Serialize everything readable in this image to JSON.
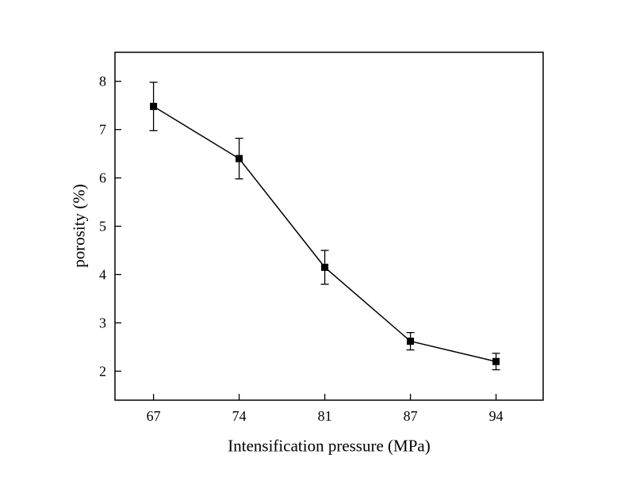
{
  "figure": {
    "background": "#ffffff",
    "line_color": "#000000"
  },
  "chart_data": {
    "type": "line",
    "title": "",
    "xlabel": "Intensification pressure (MPa)",
    "ylabel": "porosity (%)",
    "categories": [
      "67",
      "74",
      "81",
      "87",
      "94"
    ],
    "series": [
      {
        "name": "porosity",
        "marker": "square",
        "color": "#000000",
        "values": [
          7.48,
          6.4,
          4.15,
          2.62,
          2.2
        ],
        "errors": [
          0.5,
          0.42,
          0.35,
          0.18,
          0.17
        ]
      }
    ],
    "yticks": [
      2,
      3,
      4,
      5,
      6,
      7,
      8
    ],
    "ylim": [
      1.4,
      8.6
    ],
    "grid": false,
    "legend": "none",
    "error_bars": true
  }
}
